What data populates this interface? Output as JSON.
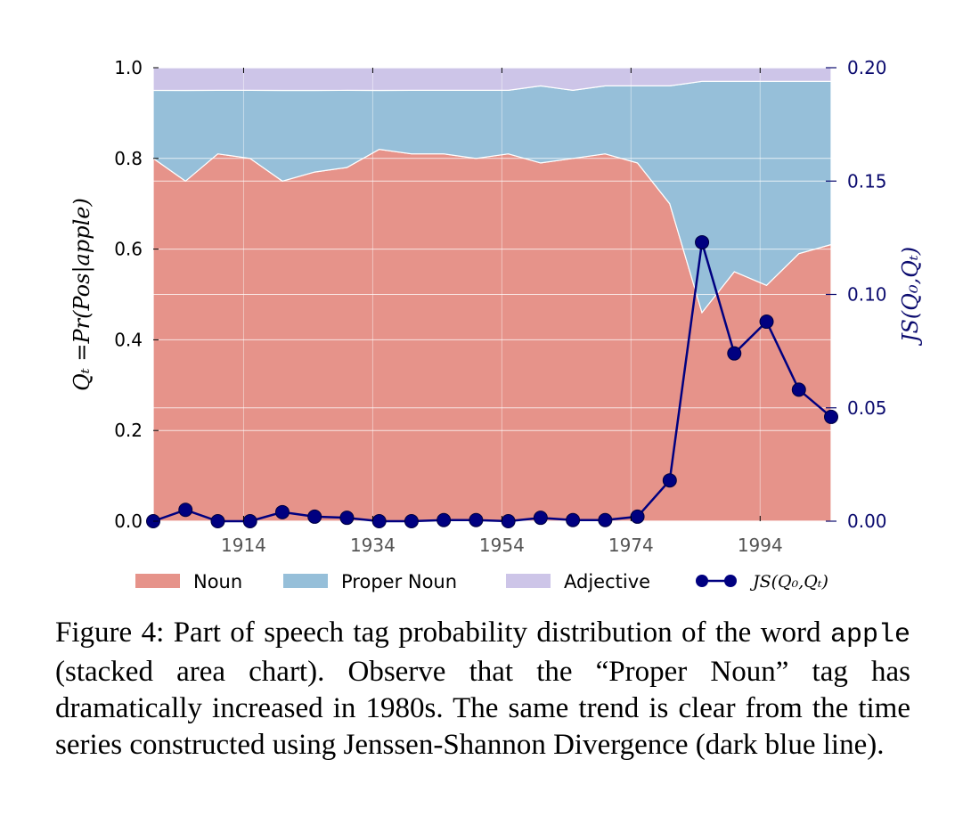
{
  "chart_data": {
    "type": "area",
    "stacked": true,
    "x": [
      1900,
      1905,
      1910,
      1915,
      1920,
      1925,
      1930,
      1935,
      1940,
      1945,
      1950,
      1955,
      1960,
      1965,
      1970,
      1975,
      1980,
      1985,
      1990,
      1995,
      2000,
      2005
    ],
    "series": [
      {
        "name": "Noun",
        "color": "#e07b70",
        "values": [
          0.8,
          0.75,
          0.81,
          0.8,
          0.75,
          0.77,
          0.78,
          0.82,
          0.81,
          0.81,
          0.8,
          0.81,
          0.79,
          0.8,
          0.81,
          0.79,
          0.7,
          0.46,
          0.55,
          0.52,
          0.59,
          0.61
        ]
      },
      {
        "name": "Proper Noun",
        "color": "#7fb1d1",
        "values": [
          0.15,
          0.2,
          0.14,
          0.15,
          0.2,
          0.18,
          0.17,
          0.13,
          0.14,
          0.14,
          0.15,
          0.14,
          0.17,
          0.15,
          0.15,
          0.17,
          0.26,
          0.51,
          0.42,
          0.45,
          0.38,
          0.36
        ]
      },
      {
        "name": "Adjective",
        "color": "#c2b8e3",
        "values": [
          0.05,
          0.05,
          0.05,
          0.05,
          0.05,
          0.05,
          0.05,
          0.05,
          0.05,
          0.05,
          0.05,
          0.05,
          0.04,
          0.05,
          0.04,
          0.04,
          0.04,
          0.03,
          0.03,
          0.03,
          0.03,
          0.03
        ]
      }
    ],
    "line_series": {
      "name": "JS(Q_0,Q_t)",
      "legend_label": "JS(Q₀,Qₜ)",
      "color": "#000080",
      "values": [
        0.0,
        0.005,
        0.0,
        0.0,
        0.004,
        0.002,
        0.0015,
        0.0,
        0.0,
        0.0005,
        0.0005,
        0.0,
        0.0015,
        0.0005,
        0.0005,
        0.002,
        0.018,
        0.123,
        0.074,
        0.088,
        0.058,
        0.046
      ]
    },
    "xlim": [
      1900,
      2005
    ],
    "ylim": [
      0,
      1.0
    ],
    "ylim_right": [
      0,
      0.2
    ],
    "xticks": [
      1914,
      1934,
      1954,
      1974,
      1994
    ],
    "yticks": [
      "0.0",
      "0.2",
      "0.4",
      "0.6",
      "0.8",
      "1.0"
    ],
    "yticks_right": [
      "0.00",
      "0.05",
      "0.10",
      "0.15",
      "0.20"
    ],
    "ylabel": "Q_t = Pr(Pos|apple)",
    "ylabel_display": "Qₜ =Pr(Pos|apple)",
    "ylabel_right": "JS(Q_0,Q_t)",
    "ylabel_right_display": "JS(Q₀,Qₜ)",
    "grid": true,
    "legend_position": "bottom"
  },
  "caption": {
    "prefix": "Figure 4: Part of speech tag probability distribution of the word",
    "code": "apple",
    "suffix": "(stacked area chart). Observe that the “Proper Noun” tag has dramatically increased in 1980s. The same trend is clear from the time series constructed using Jenssen-Shannon Divergence (dark blue line)."
  }
}
